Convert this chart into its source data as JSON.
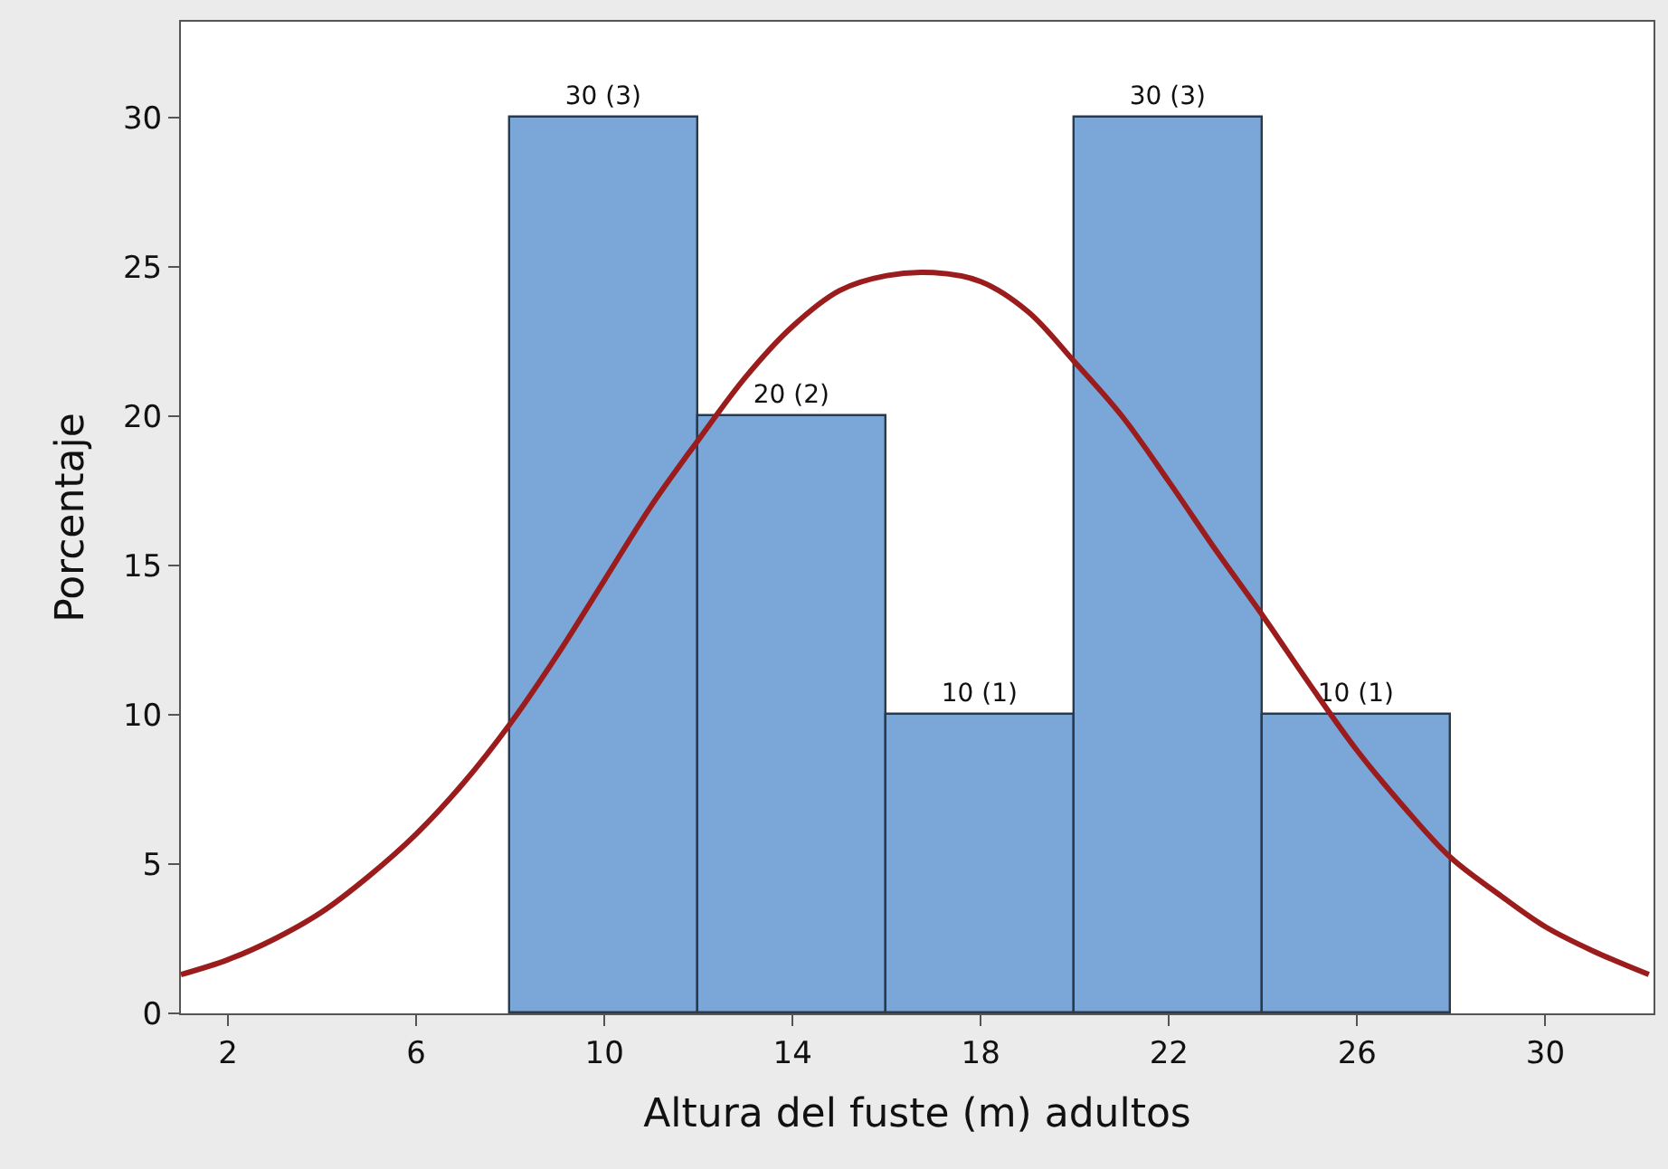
{
  "chart_data": {
    "type": "histogram",
    "xlabel": "Altura del fuste (m) adultos",
    "ylabel": "Porcentaje",
    "bins": [
      8,
      12,
      16,
      20,
      24,
      28
    ],
    "values": [
      30,
      20,
      10,
      30,
      10
    ],
    "color": "#7ba7d8",
    "value_labels": [
      "30 (3)",
      "20 (2)",
      "10 (1)",
      "30 (3)",
      "10 (1)"
    ],
    "series": [
      {
        "type": "line",
        "color": "#9b1c1c",
        "x": [
          1,
          2,
          3,
          4,
          5,
          6,
          7,
          8,
          9,
          10,
          11,
          12,
          13,
          14,
          15,
          16,
          17,
          18,
          19,
          20,
          21,
          22,
          23,
          24,
          25,
          26,
          27,
          28,
          29,
          30,
          31,
          32.2
        ],
        "values": [
          1.3,
          1.8,
          2.5,
          3.4,
          4.6,
          6.0,
          7.7,
          9.7,
          12.0,
          14.5,
          17.0,
          19.2,
          21.3,
          23.0,
          24.2,
          24.7,
          24.8,
          24.5,
          23.5,
          21.8,
          20.0,
          17.8,
          15.5,
          13.3,
          11.0,
          8.8,
          6.9,
          5.2,
          4.0,
          2.9,
          2.1,
          1.3
        ]
      }
    ],
    "xlim": [
      1,
      32.3
    ],
    "xticks": [
      2,
      6,
      10,
      14,
      18,
      22,
      26,
      30
    ],
    "ylim": [
      0,
      33.2
    ],
    "yticks": [
      0,
      5,
      10,
      15,
      20,
      25,
      30
    ]
  }
}
